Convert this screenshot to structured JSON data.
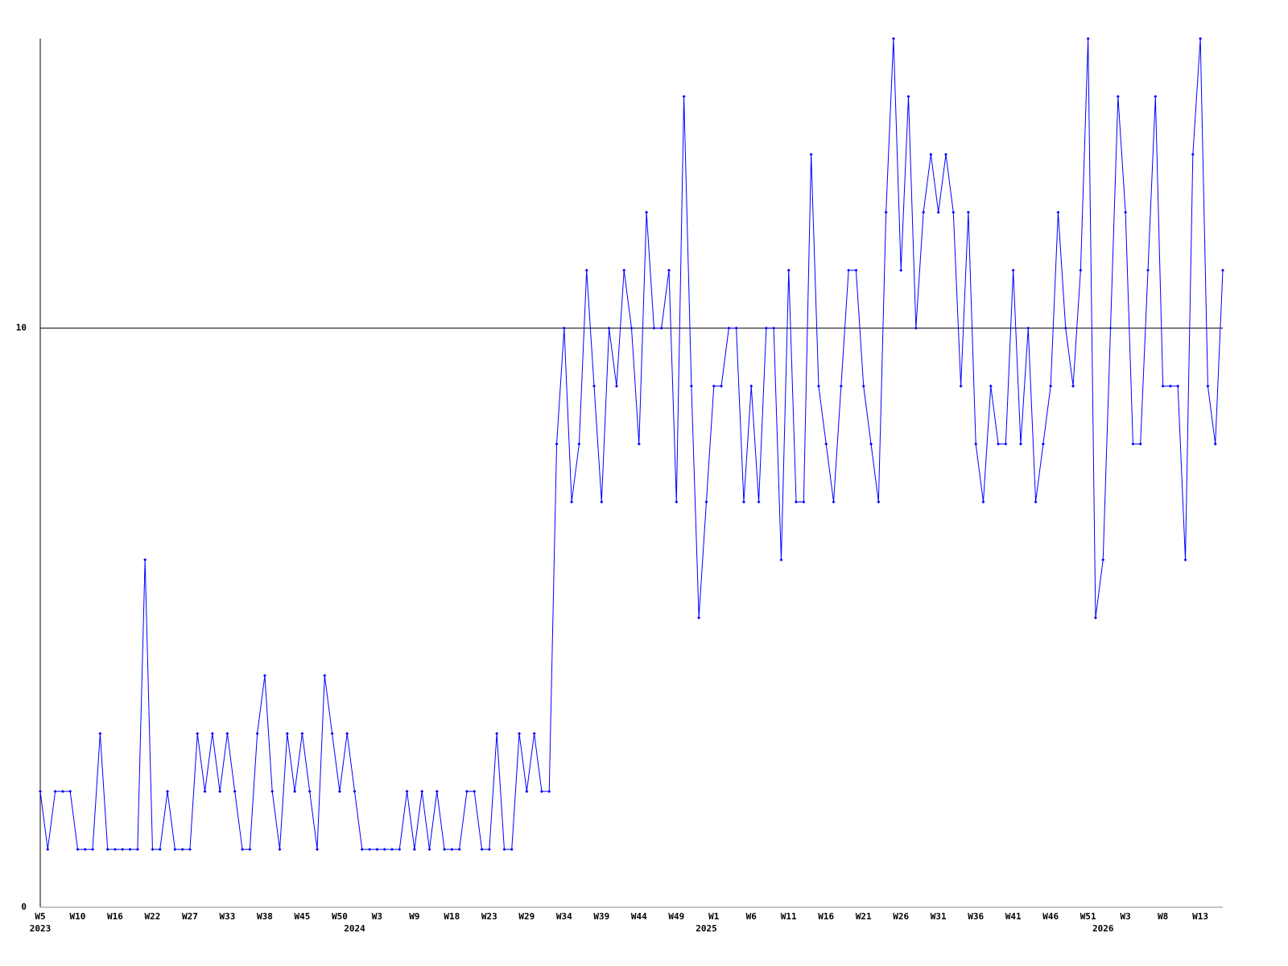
{
  "chart_data": {
    "type": "line",
    "categories": [
      "W5",
      null,
      null,
      null,
      null,
      "W10",
      null,
      null,
      null,
      null,
      "W16",
      null,
      null,
      null,
      null,
      "W22",
      null,
      null,
      null,
      null,
      "W27",
      null,
      null,
      null,
      null,
      "W33",
      null,
      null,
      null,
      null,
      "W38",
      null,
      null,
      null,
      null,
      "W45",
      null,
      null,
      null,
      null,
      "W50",
      null,
      null,
      null,
      null,
      "W3",
      null,
      null,
      null,
      null,
      "W9",
      null,
      null,
      null,
      null,
      "W18",
      null,
      null,
      null,
      null,
      "W23",
      null,
      null,
      null,
      null,
      "W29",
      null,
      null,
      null,
      null,
      "W34",
      null,
      null,
      null,
      null,
      "W39",
      null,
      null,
      null,
      null,
      "W44",
      null,
      null,
      null,
      null,
      "W49",
      null,
      null,
      null,
      null,
      "W1",
      null,
      null,
      null,
      null,
      "W6",
      null,
      null,
      null,
      null,
      "W11",
      null,
      null,
      null,
      null,
      "W16",
      null,
      null,
      null,
      null,
      "W21",
      null,
      null,
      null,
      null,
      "W26",
      null,
      null,
      null,
      null,
      "W31",
      null,
      null,
      null,
      null,
      "W36",
      null,
      null,
      null,
      null,
      "W41",
      null,
      null,
      null,
      null,
      "W46",
      null,
      null,
      null,
      null,
      "W51",
      null,
      null,
      null,
      null,
      "W3",
      null,
      null,
      null,
      null,
      "W8",
      null,
      null,
      null,
      null,
      "W13",
      null,
      null,
      null
    ],
    "years": [
      "2023",
      null,
      null,
      null,
      null,
      null,
      null,
      null,
      null,
      null,
      null,
      null,
      null,
      null,
      null,
      null,
      null,
      null,
      null,
      null,
      null,
      null,
      null,
      null,
      null,
      null,
      null,
      null,
      null,
      null,
      null,
      null,
      null,
      null,
      null,
      null,
      null,
      null,
      null,
      null,
      null,
      null,
      "2024",
      null,
      null,
      null,
      null,
      null,
      null,
      null,
      null,
      null,
      null,
      null,
      null,
      null,
      null,
      null,
      null,
      null,
      null,
      null,
      null,
      null,
      null,
      null,
      null,
      null,
      null,
      null,
      null,
      null,
      null,
      null,
      null,
      null,
      null,
      null,
      null,
      null,
      null,
      null,
      null,
      null,
      null,
      null,
      null,
      null,
      null,
      "2025",
      null,
      null,
      null,
      null,
      null,
      null,
      null,
      null,
      null,
      null,
      null,
      null,
      null,
      null,
      null,
      null,
      null,
      null,
      null,
      null,
      null,
      null,
      null,
      null,
      null,
      null,
      null,
      null,
      null,
      null,
      null,
      null,
      null,
      null,
      null,
      null,
      null,
      null,
      null,
      null,
      null,
      null,
      null,
      null,
      null,
      null,
      null,
      null,
      null,
      null,
      null,
      null,
      "2026",
      null,
      null,
      null,
      null,
      null,
      null,
      null,
      null,
      null,
      null,
      null,
      null,
      null,
      null,
      null,
      null
    ],
    "series": [
      {
        "color": "#0000ff",
        "values": [
          2,
          1,
          2,
          2,
          2,
          1,
          1,
          1,
          3,
          1,
          1,
          1,
          1,
          1,
          6,
          1,
          1,
          2,
          1,
          1,
          1,
          3,
          2,
          3,
          2,
          3,
          2,
          1,
          1,
          3,
          4,
          2,
          1,
          3,
          2,
          3,
          2,
          1,
          4,
          3,
          2,
          3,
          2,
          1,
          1,
          1,
          1,
          1,
          1,
          2,
          1,
          2,
          1,
          2,
          1,
          1,
          1,
          2,
          2,
          1,
          1,
          3,
          1,
          1,
          3,
          2,
          3,
          2,
          2,
          8,
          10,
          7,
          8,
          11,
          9,
          7,
          10,
          9,
          11,
          10,
          8,
          12,
          10,
          10,
          11,
          7,
          14,
          9,
          5,
          7,
          9,
          9,
          10,
          10,
          7,
          9,
          7,
          10,
          10,
          6,
          11,
          7,
          7,
          13,
          9,
          8,
          7,
          9,
          11,
          11,
          9,
          8,
          7,
          12,
          15,
          11,
          14,
          10,
          12,
          13,
          12,
          13,
          12,
          9,
          12,
          8,
          7,
          9,
          8,
          8,
          11,
          8,
          10,
          7,
          8,
          9,
          12,
          10,
          9,
          11,
          15,
          5,
          6,
          10,
          14,
          12,
          8,
          8,
          11,
          14,
          9,
          9,
          9,
          6,
          13,
          15,
          9,
          8,
          11
        ]
      }
    ],
    "ylim": [
      0,
      15
    ],
    "yticks": [
      0,
      10
    ],
    "grid": true
  }
}
